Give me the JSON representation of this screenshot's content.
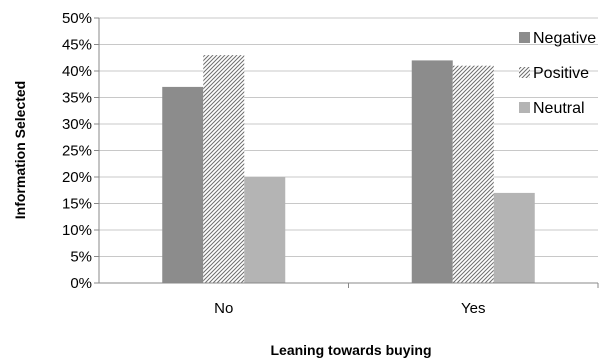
{
  "chart_data": {
    "type": "bar",
    "title": "",
    "xlabel": "Leaning towards buying",
    "ylabel": "Information Selected",
    "categories": [
      "No",
      "Yes"
    ],
    "series": [
      {
        "name": "Negative",
        "values": [
          0.37,
          0.42
        ],
        "color": "#8c8c8c",
        "pattern": "solid"
      },
      {
        "name": "Positive",
        "values": [
          0.43,
          0.41
        ],
        "color": "#6e6e6e",
        "pattern": "diagonal-hatch"
      },
      {
        "name": "Neutral",
        "values": [
          0.2,
          0.17
        ],
        "color": "#b4b4b4",
        "pattern": "solid"
      }
    ],
    "ylim": [
      0,
      0.5
    ],
    "yticks": [
      "0%",
      "5%",
      "10%",
      "15%",
      "20%",
      "25%",
      "30%",
      "35%",
      "40%",
      "45%",
      "50%"
    ],
    "grid": true,
    "legend": "right"
  }
}
